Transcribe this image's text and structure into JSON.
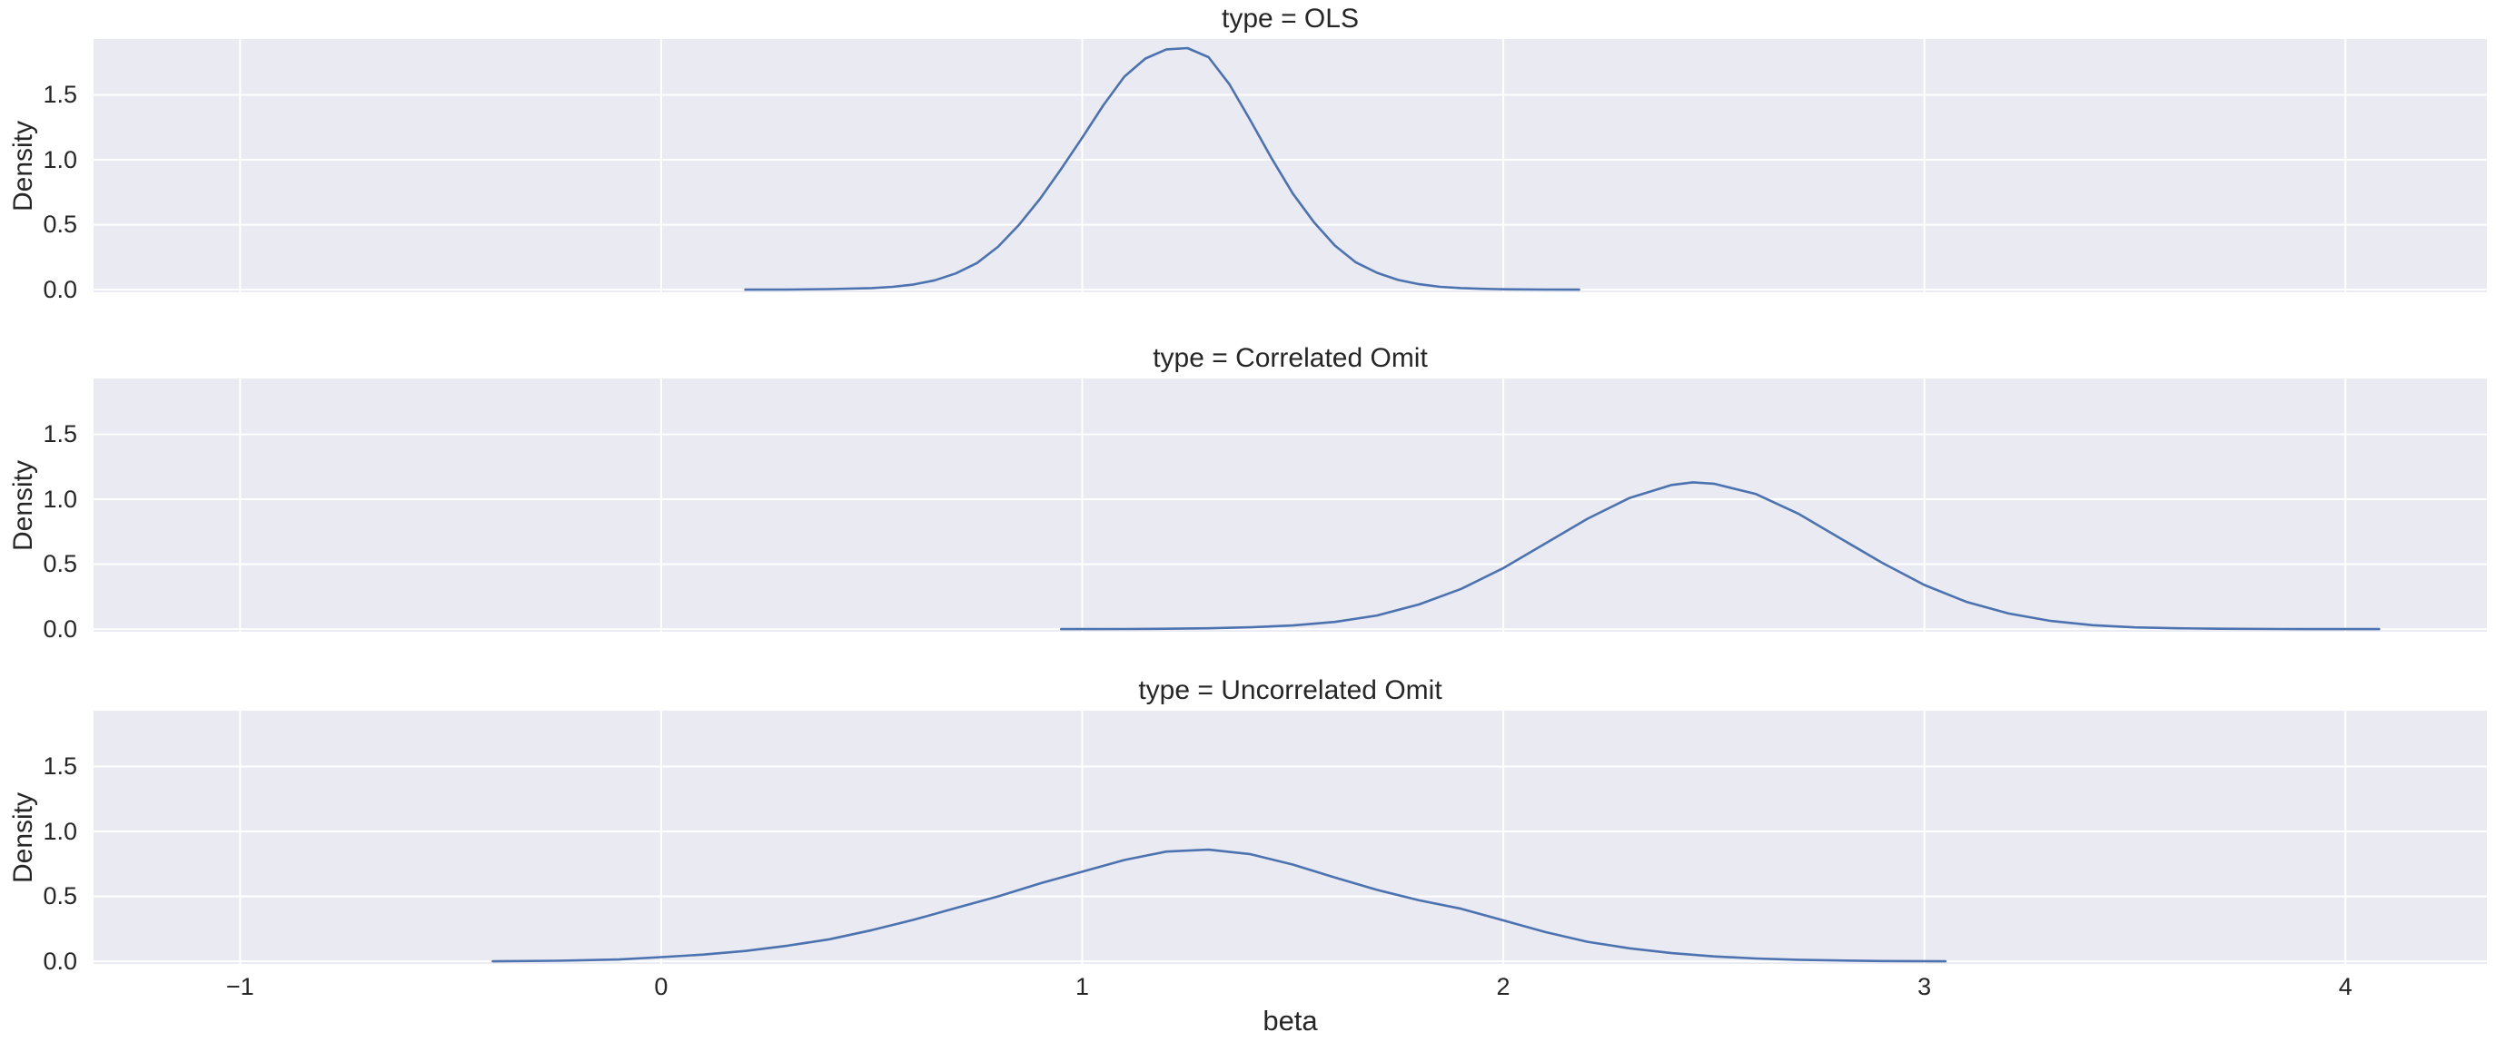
{
  "figure": {
    "background_color": "#ffffff",
    "panel_background_color": "#eaeaf2",
    "grid_color": "#ffffff",
    "line_color": "#4c72b0",
    "text_color": "#262626"
  },
  "chart_data": {
    "type": "line",
    "subtype": "kde-density-facets",
    "xlabel": "beta",
    "ylabel": "Density",
    "grid": true,
    "legend": false,
    "xlim": [
      -1.348,
      4.336
    ],
    "ylim": [
      0,
      1.93
    ],
    "x_ticks": [
      {
        "value": -1,
        "label": "−1"
      },
      {
        "value": 0,
        "label": "0"
      },
      {
        "value": 1,
        "label": "1"
      },
      {
        "value": 2,
        "label": "2"
      },
      {
        "value": 3,
        "label": "3"
      },
      {
        "value": 4,
        "label": "4"
      }
    ],
    "y_ticks": [
      {
        "value": 0.0,
        "label": "0.0"
      },
      {
        "value": 0.5,
        "label": "0.5"
      },
      {
        "value": 1.0,
        "label": "1.0"
      },
      {
        "value": 1.5,
        "label": "1.5"
      }
    ],
    "facets": [
      {
        "title": "type = OLS",
        "facet_var": "type",
        "facet_value": "OLS",
        "peak": {
          "beta": 1.22,
          "density": 1.86
        },
        "points": [
          [
            0.2,
            0
          ],
          [
            0.3,
            0.001
          ],
          [
            0.4,
            0.004
          ],
          [
            0.5,
            0.012
          ],
          [
            0.55,
            0.022
          ],
          [
            0.6,
            0.04
          ],
          [
            0.65,
            0.072
          ],
          [
            0.7,
            0.125
          ],
          [
            0.75,
            0.205
          ],
          [
            0.8,
            0.33
          ],
          [
            0.85,
            0.5
          ],
          [
            0.9,
            0.7
          ],
          [
            0.95,
            0.93
          ],
          [
            1.0,
            1.17
          ],
          [
            1.05,
            1.42
          ],
          [
            1.1,
            1.64
          ],
          [
            1.15,
            1.78
          ],
          [
            1.2,
            1.85
          ],
          [
            1.25,
            1.86
          ],
          [
            1.3,
            1.79
          ],
          [
            1.35,
            1.58
          ],
          [
            1.4,
            1.3
          ],
          [
            1.45,
            1.01
          ],
          [
            1.5,
            0.74
          ],
          [
            1.55,
            0.52
          ],
          [
            1.6,
            0.34
          ],
          [
            1.65,
            0.21
          ],
          [
            1.7,
            0.13
          ],
          [
            1.75,
            0.075
          ],
          [
            1.8,
            0.042
          ],
          [
            1.85,
            0.022
          ],
          [
            1.9,
            0.012
          ],
          [
            1.95,
            0.006
          ],
          [
            2.0,
            0.003
          ],
          [
            2.1,
            0.001
          ],
          [
            2.18,
            0
          ]
        ]
      },
      {
        "title": "type = Correlated Omit",
        "facet_var": "type",
        "facet_value": "Correlated Omit",
        "peak": {
          "beta": 2.45,
          "density": 1.13
        },
        "points": [
          [
            0.95,
            0
          ],
          [
            1.1,
            0.001
          ],
          [
            1.2,
            0.003
          ],
          [
            1.3,
            0.006
          ],
          [
            1.4,
            0.014
          ],
          [
            1.5,
            0.028
          ],
          [
            1.6,
            0.055
          ],
          [
            1.7,
            0.105
          ],
          [
            1.8,
            0.19
          ],
          [
            1.9,
            0.31
          ],
          [
            2.0,
            0.47
          ],
          [
            2.1,
            0.66
          ],
          [
            2.2,
            0.85
          ],
          [
            2.3,
            1.01
          ],
          [
            2.4,
            1.11
          ],
          [
            2.45,
            1.13
          ],
          [
            2.5,
            1.12
          ],
          [
            2.6,
            1.04
          ],
          [
            2.7,
            0.89
          ],
          [
            2.8,
            0.7
          ],
          [
            2.9,
            0.51
          ],
          [
            3.0,
            0.34
          ],
          [
            3.1,
            0.21
          ],
          [
            3.2,
            0.12
          ],
          [
            3.3,
            0.063
          ],
          [
            3.4,
            0.03
          ],
          [
            3.5,
            0.013
          ],
          [
            3.6,
            0.006
          ],
          [
            3.7,
            0.003
          ],
          [
            3.85,
            0.001
          ],
          [
            4.08,
            0
          ]
        ]
      },
      {
        "title": "type = Uncorrelated Omit",
        "facet_var": "type",
        "facet_value": "Uncorrelated Omit",
        "peak": {
          "beta": 1.25,
          "density": 0.86
        },
        "points": [
          [
            -0.4,
            0
          ],
          [
            -0.25,
            0.004
          ],
          [
            -0.1,
            0.014
          ],
          [
            0.0,
            0.032
          ],
          [
            0.1,
            0.052
          ],
          [
            0.2,
            0.08
          ],
          [
            0.3,
            0.12
          ],
          [
            0.4,
            0.17
          ],
          [
            0.5,
            0.24
          ],
          [
            0.6,
            0.32
          ],
          [
            0.7,
            0.41
          ],
          [
            0.8,
            0.5
          ],
          [
            0.9,
            0.6
          ],
          [
            1.0,
            0.69
          ],
          [
            1.1,
            0.78
          ],
          [
            1.2,
            0.845
          ],
          [
            1.3,
            0.86
          ],
          [
            1.4,
            0.825
          ],
          [
            1.5,
            0.745
          ],
          [
            1.6,
            0.645
          ],
          [
            1.7,
            0.55
          ],
          [
            1.8,
            0.47
          ],
          [
            1.9,
            0.405
          ],
          [
            2.0,
            0.315
          ],
          [
            2.1,
            0.225
          ],
          [
            2.2,
            0.15
          ],
          [
            2.3,
            0.1
          ],
          [
            2.4,
            0.063
          ],
          [
            2.5,
            0.038
          ],
          [
            2.6,
            0.022
          ],
          [
            2.7,
            0.012
          ],
          [
            2.8,
            0.006
          ],
          [
            2.9,
            0.002
          ],
          [
            3.05,
            0
          ]
        ]
      }
    ]
  }
}
